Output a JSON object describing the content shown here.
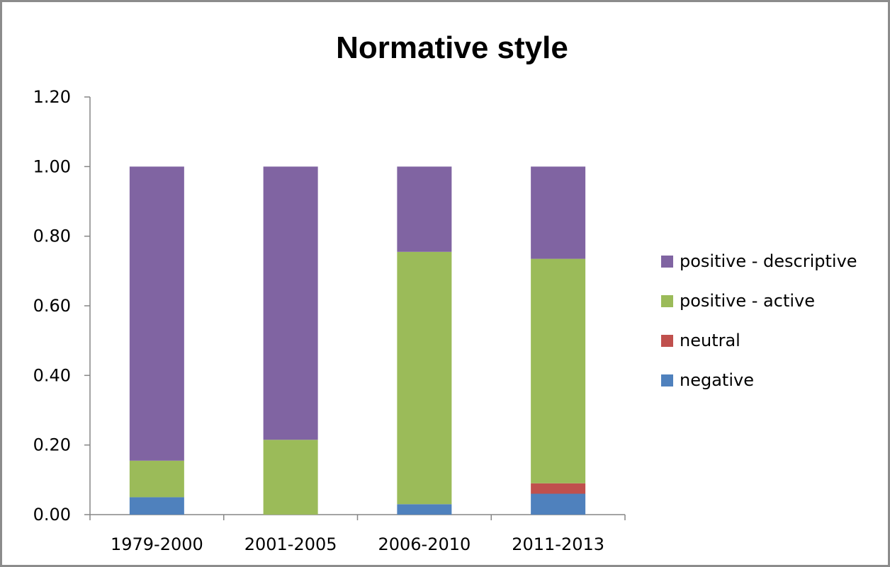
{
  "chart_data": {
    "type": "bar",
    "stacked": true,
    "title": "Normative style",
    "xlabel": "",
    "ylabel": "",
    "categories": [
      "1979-2000",
      "2001-2005",
      "2006-2010",
      "2011-2013"
    ],
    "ylim": [
      0,
      1.2
    ],
    "yticks": [
      "0.00",
      "0.20",
      "0.40",
      "0.60",
      "0.80",
      "1.00",
      "1.20"
    ],
    "series": [
      {
        "name": "negative",
        "color": "#4f81bd",
        "values": [
          0.05,
          0.0,
          0.03,
          0.06
        ]
      },
      {
        "name": "neutral",
        "color": "#c0504d",
        "values": [
          0.0,
          0.0,
          0.0,
          0.03
        ]
      },
      {
        "name": "positive - active",
        "color": "#9bbb59",
        "values": [
          0.105,
          0.215,
          0.725,
          0.645
        ]
      },
      {
        "name": "positive - descriptive",
        "color": "#8064a2",
        "values": [
          0.845,
          0.785,
          0.245,
          0.265
        ]
      }
    ],
    "legend": {
      "position": "right",
      "order": [
        "positive - descriptive",
        "positive - active",
        "neutral",
        "negative"
      ]
    },
    "grid": false
  }
}
